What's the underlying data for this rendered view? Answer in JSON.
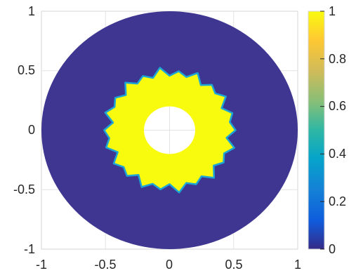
{
  "chart_data": {
    "type": "heatmap",
    "title": "",
    "xlabel": "",
    "ylabel": "",
    "xlim": [
      -1,
      1
    ],
    "ylim": [
      -1,
      1
    ],
    "x_ticks": [
      "-1",
      "-0.5",
      "0",
      "0.5",
      "1"
    ],
    "y_ticks": [
      "1",
      "0.5",
      "0",
      "-0.5",
      "-1"
    ],
    "grid": true,
    "colorbar": {
      "limits": [
        0,
        1
      ],
      "ticks": [
        "1",
        "0.8",
        "0.6",
        "0.4",
        "0.2",
        "0"
      ],
      "colormap": "parula",
      "placement": "right"
    },
    "regions": {
      "domain_outer_radius": 1.0,
      "hole_radius": 0.2,
      "inner_region_radius_approx": 0.48,
      "inner_region_value": 1,
      "outer_region_value": 0,
      "inner_region_color": "#f9fb0e",
      "outer_region_color": "#3e3691",
      "edge_color": "#1ba6d6"
    }
  }
}
